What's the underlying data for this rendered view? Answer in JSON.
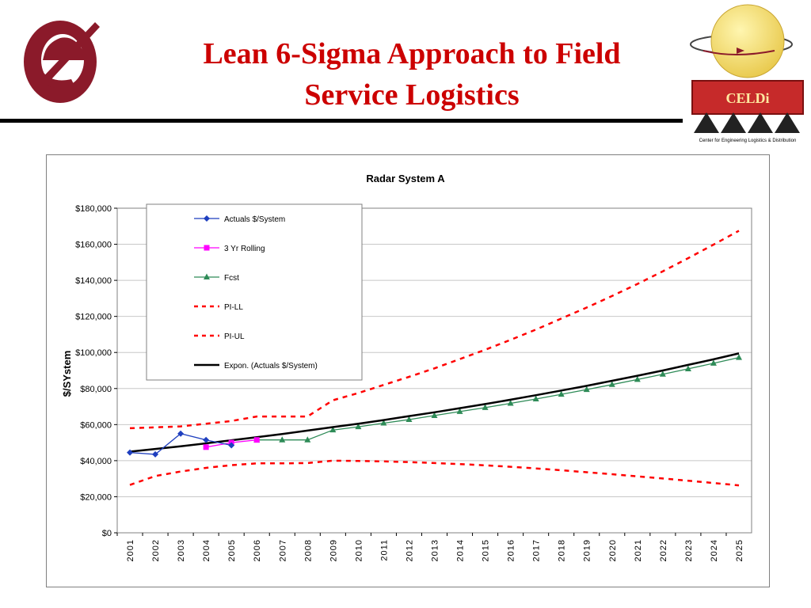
{
  "slide": {
    "title_line1": "Lean 6-Sigma Approach to Field",
    "title_line2": "Service Logistics",
    "logo_right_text": "CELDi",
    "logo_right_caption": "Center for Engineering Logistics & Distribution"
  },
  "colors": {
    "title": "#cc0000",
    "actuals": "#1f3fbf",
    "rolling": "#ff00ff",
    "fcst": "#2e8b57",
    "pi": "#ff0000",
    "expon": "#000000"
  },
  "chart_data": {
    "type": "line",
    "title": "Radar System A",
    "xlabel": "",
    "ylabel": "$/SYstem",
    "ylim": [
      0,
      180000
    ],
    "yticks": [
      0,
      20000,
      40000,
      60000,
      80000,
      100000,
      120000,
      140000,
      160000,
      180000
    ],
    "ytick_labels": [
      "$0",
      "$20,000",
      "$40,000",
      "$60,000",
      "$80,000",
      "$100,000",
      "$120,000",
      "$140,000",
      "$160,000",
      "$180,000"
    ],
    "categories": [
      "2001",
      "2002",
      "2003",
      "2004",
      "2005",
      "2006",
      "2007",
      "2008",
      "2009",
      "2010",
      "2011",
      "2012",
      "2013",
      "2014",
      "2015",
      "2016",
      "2017",
      "2018",
      "2019",
      "2020",
      "2021",
      "2022",
      "2023",
      "2024",
      "2025"
    ],
    "grid": "horizontal",
    "legend_position": "top-left",
    "series": [
      {
        "name": "Actuals $/System",
        "style": "line-diamond",
        "color": "#1f3fbf",
        "values": [
          44500,
          43500,
          55000,
          51500,
          48500,
          null,
          null,
          null,
          null,
          null,
          null,
          null,
          null,
          null,
          null,
          null,
          null,
          null,
          null,
          null,
          null,
          null,
          null,
          null,
          null
        ]
      },
      {
        "name": "3 Yr Rolling",
        "style": "line-square",
        "color": "#ff00ff",
        "values": [
          null,
          null,
          null,
          47500,
          50000,
          51500,
          null,
          null,
          null,
          null,
          null,
          null,
          null,
          null,
          null,
          null,
          null,
          null,
          null,
          null,
          null,
          null,
          null,
          null,
          null
        ]
      },
      {
        "name": "Fcst",
        "style": "line-triangle",
        "color": "#2e8b57",
        "values": [
          null,
          null,
          null,
          null,
          null,
          51500,
          51500,
          51500,
          57000,
          58800,
          60800,
          62800,
          65000,
          67200,
          69400,
          71800,
          74200,
          76800,
          79400,
          82200,
          85000,
          87900,
          90900,
          94000,
          97200
        ]
      },
      {
        "name": "PI-LL",
        "style": "dashed",
        "color": "#ff0000",
        "values": [
          58000,
          58500,
          59000,
          60500,
          62000,
          64500,
          64500,
          64500,
          73500,
          77500,
          82000,
          86500,
          91200,
          96300,
          101500,
          107000,
          112700,
          118800,
          124900,
          131300,
          138000,
          145000,
          152300,
          159800,
          167500
        ]
      },
      {
        "name": "PI-UL",
        "style": "dashed",
        "color": "#ff0000",
        "values": [
          26500,
          31500,
          34000,
          36000,
          37500,
          38500,
          38500,
          38700,
          40000,
          39800,
          39600,
          39200,
          38700,
          38100,
          37400,
          36600,
          35700,
          34700,
          33600,
          32500,
          31300,
          30100,
          28900,
          27600,
          26300
        ]
      },
      {
        "name": "Expon. (Actuals $/System)",
        "style": "thick-line",
        "color": "#000000",
        "values": [
          45000,
          46500,
          48000,
          49600,
          51300,
          53000,
          54800,
          56700,
          58600,
          60500,
          62500,
          64700,
          66800,
          69100,
          71400,
          73800,
          76300,
          78900,
          81500,
          84300,
          87100,
          90000,
          93100,
          96200,
          99500
        ]
      }
    ]
  }
}
